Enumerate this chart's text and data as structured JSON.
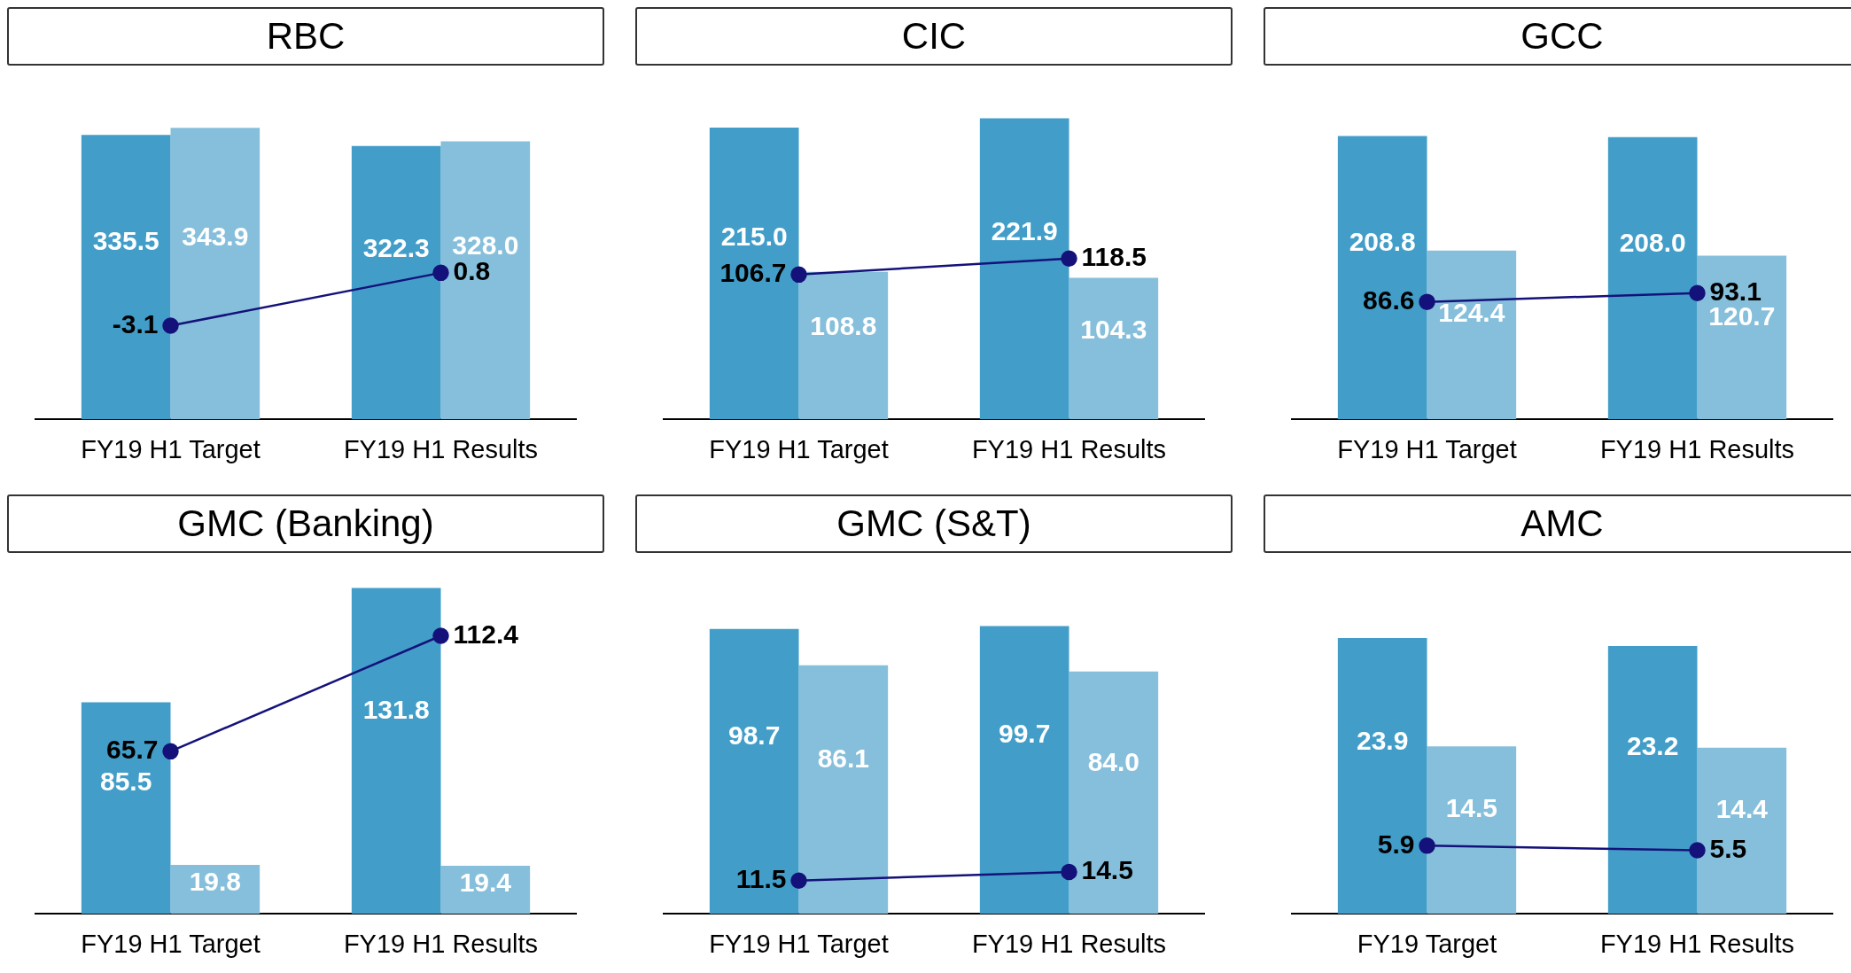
{
  "chart_data": [
    {
      "type": "bar",
      "title": "RBC",
      "categories": [
        "FY19 H1 Target",
        "FY19 H1 Results"
      ],
      "series": [
        {
          "color": "#429ec9",
          "values": [
            335.5,
            322.3
          ],
          "value_labels": [
            "335.5",
            "322.3"
          ]
        },
        {
          "color": "#86bfdb",
          "values": [
            343.9,
            328.0
          ],
          "value_labels": [
            "343.9",
            "328.0"
          ]
        },
        {
          "type": "line",
          "axis": "y2",
          "color": "#14127a",
          "values": [
            -3.1,
            0.8
          ],
          "value_labels": [
            "-3.1",
            "0.8"
          ]
        }
      ],
      "marker": "circle"
    },
    {
      "type": "bar",
      "title": "CIC",
      "categories": [
        "FY19 H1 Target",
        "FY19 H1 Results"
      ],
      "series": [
        {
          "color": "#429ec9",
          "values": [
            215.0,
            221.9
          ],
          "value_labels": [
            "215.0",
            "221.9"
          ]
        },
        {
          "color": "#86bfdb",
          "values": [
            108.8,
            104.3
          ],
          "value_labels": [
            "108.8",
            "104.3"
          ]
        },
        {
          "type": "line",
          "color": "#14127a",
          "values": [
            106.7,
            118.5
          ],
          "value_labels": [
            "106.7",
            "118.5"
          ]
        }
      ],
      "marker": "circle"
    },
    {
      "type": "bar",
      "title": "GCC",
      "categories": [
        "FY19 H1 Target",
        "FY19 H1 Results"
      ],
      "series": [
        {
          "color": "#429ec9",
          "values": [
            208.8,
            208.0
          ],
          "value_labels": [
            "208.8",
            "208.0"
          ]
        },
        {
          "color": "#86bfdb",
          "values": [
            124.4,
            120.7
          ],
          "value_labels": [
            "124.4",
            "120.7"
          ]
        },
        {
          "type": "line",
          "color": "#14127a",
          "values": [
            86.6,
            93.1
          ],
          "value_labels": [
            "86.6",
            "93.1"
          ]
        }
      ],
      "marker": "circle"
    },
    {
      "type": "bar",
      "title": "GMC (Banking)",
      "categories": [
        "FY19 H1 Target",
        "FY19 H1 Results"
      ],
      "series": [
        {
          "color": "#429ec9",
          "values": [
            85.5,
            131.8
          ],
          "value_labels": [
            "85.5",
            "131.8"
          ]
        },
        {
          "color": "#86bfdb",
          "values": [
            19.8,
            19.4
          ],
          "value_labels": [
            "19.8",
            "19.4"
          ]
        },
        {
          "type": "line",
          "color": "#14127a",
          "values": [
            65.7,
            112.4
          ],
          "value_labels": [
            "65.7",
            "112.4"
          ]
        }
      ],
      "marker": "circle"
    },
    {
      "type": "bar",
      "title": "GMC (S&T)",
      "categories": [
        "FY19 H1 Target",
        "FY19 H1 Results"
      ],
      "series": [
        {
          "color": "#429ec9",
          "values": [
            98.7,
            99.7
          ],
          "value_labels": [
            "98.7",
            "99.7"
          ]
        },
        {
          "color": "#86bfdb",
          "values": [
            86.1,
            84.0
          ],
          "value_labels": [
            "86.1",
            "84.0"
          ]
        },
        {
          "type": "line",
          "color": "#14127a",
          "values": [
            11.5,
            14.5
          ],
          "value_labels": [
            "11.5",
            "14.5"
          ]
        }
      ],
      "marker": "circle"
    },
    {
      "type": "bar",
      "title": "AMC",
      "categories": [
        "FY19 Target",
        "FY19 H1 Results"
      ],
      "series": [
        {
          "color": "#429ec9",
          "values": [
            23.9,
            23.2
          ],
          "value_labels": [
            "23.9",
            "23.2"
          ]
        },
        {
          "color": "#86bfdb",
          "values": [
            14.5,
            14.4
          ],
          "value_labels": [
            "14.5",
            "14.4"
          ]
        },
        {
          "type": "line",
          "color": "#14127a",
          "values": [
            5.9,
            5.5
          ],
          "value_labels": [
            "5.9",
            "5.5"
          ]
        }
      ],
      "marker": "circle"
    }
  ]
}
